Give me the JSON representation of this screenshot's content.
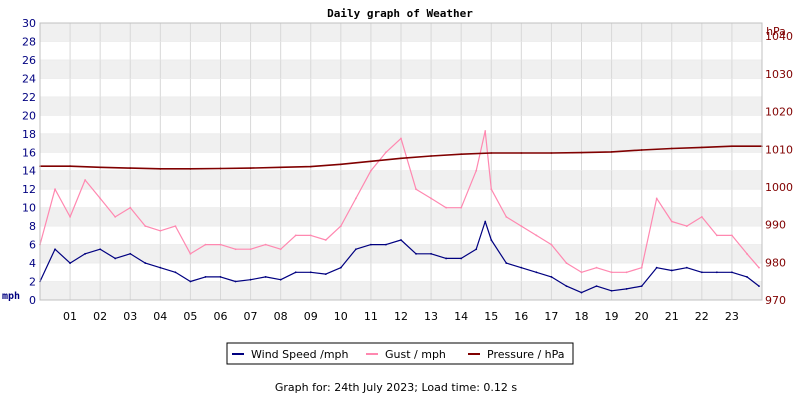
{
  "chart_data": {
    "type": "line",
    "title": "Daily graph of Weather",
    "left_axis_unit": "mph",
    "right_axis_unit": "hPa",
    "ylim_left": [
      0,
      30
    ],
    "yticks_left": [
      0,
      2,
      4,
      6,
      8,
      10,
      12,
      14,
      16,
      18,
      20,
      22,
      24,
      26,
      28,
      30
    ],
    "ylim_right": [
      970,
      1043.5
    ],
    "yticks_right": [
      970,
      980,
      990,
      1000,
      1010,
      1020,
      1030,
      1040
    ],
    "xlim": [
      0,
      24
    ],
    "x_tick_labels": [
      "01",
      "02",
      "03",
      "04",
      "05",
      "06",
      "07",
      "08",
      "09",
      "10",
      "11",
      "12",
      "13",
      "14",
      "15",
      "16",
      "17",
      "18",
      "19",
      "20",
      "21",
      "22",
      "23"
    ],
    "grid": true,
    "alternating_bands": true,
    "legend_position": "bottom-center",
    "series": [
      {
        "name": "Wind Speed /mph",
        "axis": "left",
        "color": "#000080",
        "x": [
          0,
          0.5,
          1,
          1.5,
          2,
          2.5,
          3,
          3.5,
          4,
          4.5,
          5,
          5.5,
          6,
          6.5,
          7,
          7.5,
          8,
          8.5,
          9,
          9.5,
          10,
          10.5,
          11,
          11.5,
          12,
          12.5,
          13,
          13.5,
          14,
          14.5,
          14.8,
          15,
          15.5,
          16,
          16.5,
          17,
          17.5,
          18,
          18.5,
          19,
          19.5,
          20,
          20.5,
          21,
          21.5,
          22,
          22.5,
          23,
          23.5,
          23.9
        ],
        "values": [
          2.0,
          5.5,
          4.0,
          5.0,
          5.5,
          4.5,
          5.0,
          4.0,
          3.5,
          3.0,
          2.0,
          2.5,
          2.5,
          2.0,
          2.2,
          2.5,
          2.2,
          3.0,
          3.0,
          2.8,
          3.5,
          5.5,
          6.0,
          6.0,
          6.5,
          5.0,
          5.0,
          4.5,
          4.5,
          5.5,
          8.5,
          6.5,
          4.0,
          3.5,
          3.0,
          2.5,
          1.5,
          0.8,
          1.5,
          1.0,
          1.2,
          1.5,
          3.5,
          3.2,
          3.5,
          3.0,
          3.0,
          3.0,
          2.5,
          1.5
        ]
      },
      {
        "name": "Gust / mph",
        "axis": "left",
        "color": "#ff88b0",
        "x": [
          0,
          0.5,
          1,
          1.5,
          2,
          2.5,
          3,
          3.5,
          4,
          4.5,
          5,
          5.5,
          6,
          6.5,
          7,
          7.5,
          8,
          8.5,
          9,
          9.5,
          10,
          10.5,
          11,
          11.5,
          12,
          12.5,
          13,
          13.5,
          14,
          14.5,
          14.8,
          15,
          15.5,
          16,
          16.5,
          17,
          17.5,
          18,
          18.5,
          19,
          19.5,
          20,
          20.5,
          21,
          21.5,
          22,
          22.5,
          23,
          23.5,
          23.9
        ],
        "values": [
          6.0,
          12.0,
          9.0,
          13.0,
          11.0,
          9.0,
          10.0,
          8.0,
          7.5,
          8.0,
          5.0,
          6.0,
          6.0,
          5.5,
          5.5,
          6.0,
          5.5,
          7.0,
          7.0,
          6.5,
          8.0,
          11.0,
          14.0,
          16.0,
          17.5,
          12.0,
          11.0,
          10.0,
          10.0,
          14.0,
          18.3,
          12.0,
          9.0,
          8.0,
          7.0,
          6.0,
          4.0,
          3.0,
          3.5,
          3.0,
          3.0,
          3.5,
          11.0,
          8.5,
          8.0,
          9.0,
          7.0,
          7.0,
          5.0,
          3.5
        ]
      },
      {
        "name": "Pressure / hPa",
        "axis": "right",
        "color": "#800000",
        "x": [
          0,
          1,
          2,
          3,
          4,
          5,
          6,
          7,
          8,
          9,
          10,
          11,
          12,
          13,
          14,
          15,
          16,
          17,
          18,
          19,
          20,
          21,
          22,
          23,
          24
        ],
        "values": [
          1005.5,
          1005.5,
          1005.2,
          1005.0,
          1004.8,
          1004.8,
          1004.9,
          1005.0,
          1005.2,
          1005.4,
          1006.0,
          1006.8,
          1007.6,
          1008.2,
          1008.7,
          1009.0,
          1009.0,
          1009.0,
          1009.1,
          1009.3,
          1009.8,
          1010.2,
          1010.5,
          1010.8,
          1010.8
        ]
      }
    ]
  },
  "footer": {
    "text": "Graph for: 24th July 2023; Load time: 0.12 s"
  },
  "colors": {
    "plot_band": "#f0f0f0",
    "grid": "#d8d8d8",
    "left_axis_text": "#000080",
    "right_axis_text": "#800000"
  }
}
